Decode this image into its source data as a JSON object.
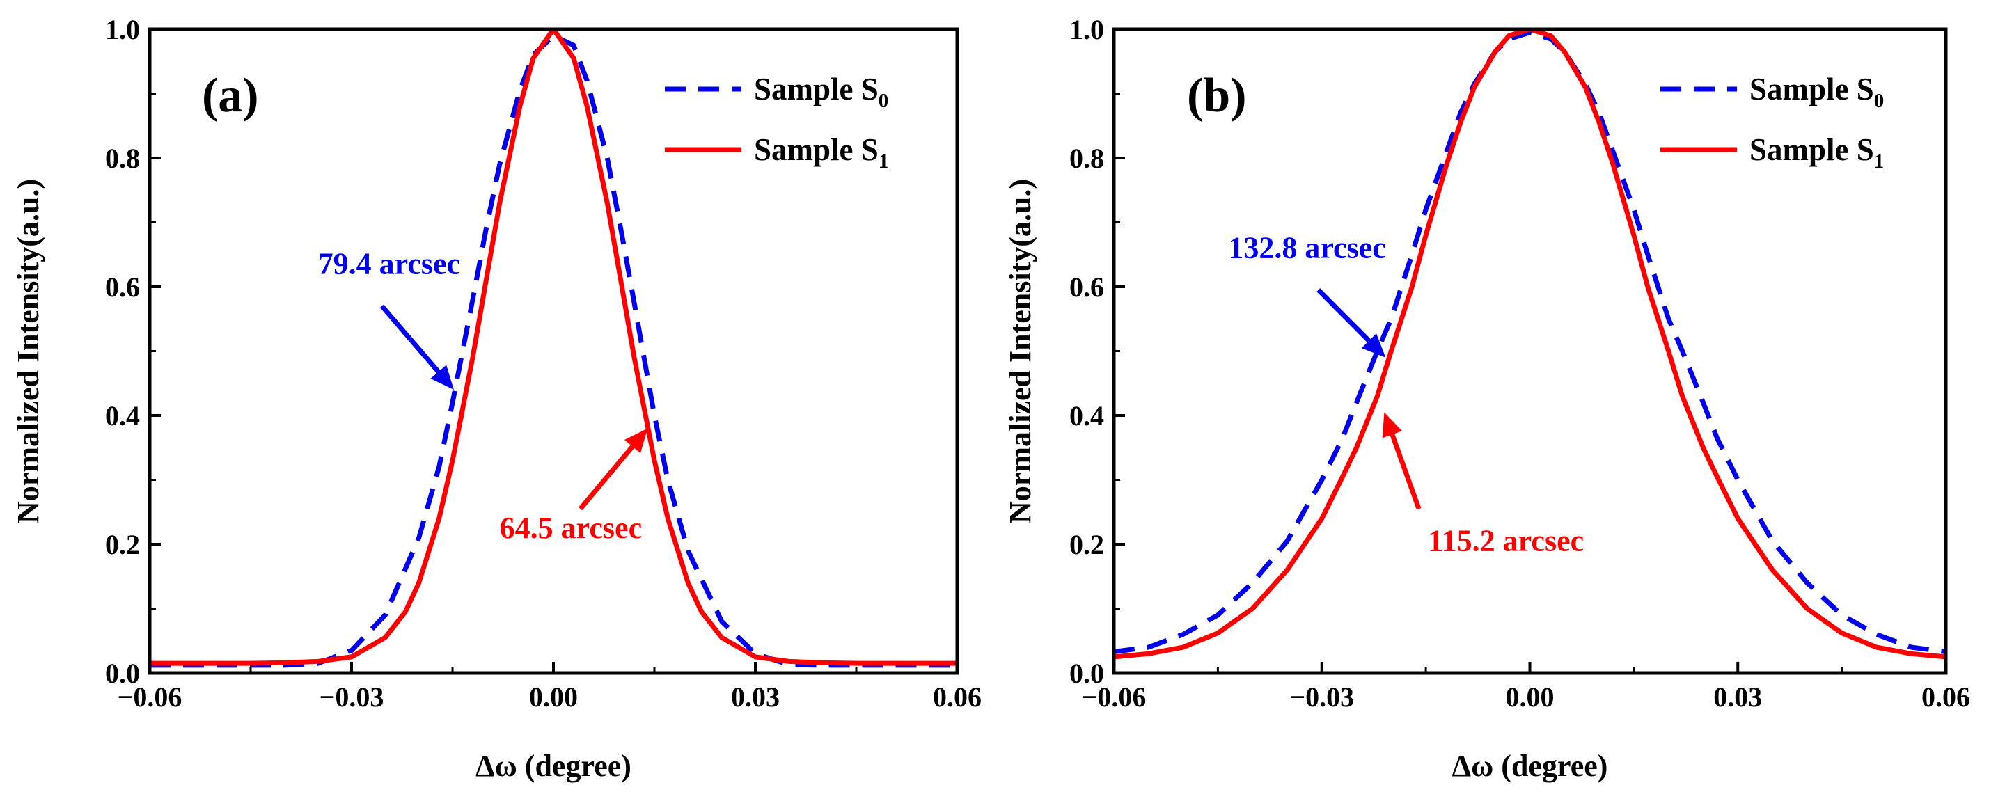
{
  "chart_data": [
    {
      "type": "line",
      "panel_label": "(a)",
      "xlabel": "Δω (degree)",
      "ylabel": "Normalized Intensity(a.u.)",
      "xlim": [
        -0.06,
        0.06
      ],
      "ylim": [
        0.0,
        1.0
      ],
      "xticks": [
        -0.06,
        -0.03,
        0.0,
        0.03,
        0.06
      ],
      "xtick_labels": [
        "−0.06",
        "−0.03",
        "0.00",
        "0.03",
        "0.06"
      ],
      "yticks": [
        0.0,
        0.2,
        0.4,
        0.6,
        0.8,
        1.0
      ],
      "ytick_labels": [
        "0.0",
        "0.2",
        "0.4",
        "0.6",
        "0.8",
        "1.0"
      ],
      "legend_position": "top-right",
      "series": [
        {
          "name_main": "Sample S",
          "name_sub": "0",
          "color": "#0000ee",
          "style": "dashed",
          "x": [
            -0.06,
            -0.045,
            -0.04,
            -0.035,
            -0.03,
            -0.025,
            -0.02,
            -0.017,
            -0.015,
            -0.012,
            -0.01,
            -0.008,
            -0.005,
            -0.003,
            0.0,
            0.003,
            0.005,
            0.008,
            0.01,
            0.012,
            0.015,
            0.017,
            0.02,
            0.025,
            0.03,
            0.035,
            0.04,
            0.045,
            0.06
          ],
          "values": [
            0.012,
            0.012,
            0.012,
            0.015,
            0.035,
            0.09,
            0.21,
            0.32,
            0.42,
            0.58,
            0.69,
            0.79,
            0.905,
            0.96,
            0.99,
            0.975,
            0.92,
            0.8,
            0.69,
            0.575,
            0.4,
            0.3,
            0.19,
            0.08,
            0.03,
            0.013,
            0.012,
            0.012,
            0.012
          ]
        },
        {
          "name_main": "Sample S",
          "name_sub": "1",
          "color": "#ff0000",
          "style": "solid",
          "x": [
            -0.06,
            -0.045,
            -0.04,
            -0.035,
            -0.03,
            -0.025,
            -0.022,
            -0.02,
            -0.017,
            -0.015,
            -0.012,
            -0.01,
            -0.008,
            -0.005,
            -0.003,
            0.0,
            0.003,
            0.005,
            0.008,
            0.01,
            0.012,
            0.015,
            0.017,
            0.02,
            0.022,
            0.025,
            0.03,
            0.035,
            0.04,
            0.045,
            0.06
          ],
          "values": [
            0.015,
            0.015,
            0.016,
            0.018,
            0.025,
            0.055,
            0.095,
            0.14,
            0.24,
            0.33,
            0.49,
            0.61,
            0.73,
            0.88,
            0.955,
            1.0,
            0.955,
            0.88,
            0.73,
            0.61,
            0.49,
            0.33,
            0.24,
            0.14,
            0.095,
            0.055,
            0.025,
            0.018,
            0.016,
            0.015,
            0.015
          ]
        }
      ],
      "annotations": [
        {
          "text": "79.4 arcsec",
          "color": "#0000ee",
          "anchor_x": -0.035,
          "anchor_y": 0.62,
          "arrow_from_x": -0.0255,
          "arrow_from_y": 0.57,
          "arrow_to_x": -0.0148,
          "arrow_to_y": 0.44
        },
        {
          "text": "64.5 arcsec",
          "color": "#ff0000",
          "anchor_x": -0.008,
          "anchor_y": 0.21,
          "arrow_from_x": 0.004,
          "arrow_from_y": 0.255,
          "arrow_to_x": 0.014,
          "arrow_to_y": 0.38
        }
      ]
    },
    {
      "type": "line",
      "panel_label": "(b)",
      "xlabel": "Δω (degree)",
      "ylabel": "Normalized Intensity(a.u.)",
      "xlim": [
        -0.06,
        0.06
      ],
      "ylim": [
        0.0,
        1.0
      ],
      "xticks": [
        -0.06,
        -0.03,
        0.0,
        0.03,
        0.06
      ],
      "xtick_labels": [
        "−0.06",
        "−0.03",
        "0.00",
        "0.03",
        "0.06"
      ],
      "yticks": [
        0.0,
        0.2,
        0.4,
        0.6,
        0.8,
        1.0
      ],
      "ytick_labels": [
        "0.0",
        "0.2",
        "0.4",
        "0.6",
        "0.8",
        "1.0"
      ],
      "legend_position": "top-right",
      "series": [
        {
          "name_main": "Sample S",
          "name_sub": "0",
          "color": "#0000ee",
          "style": "dashed",
          "x": [
            -0.06,
            -0.055,
            -0.05,
            -0.045,
            -0.04,
            -0.035,
            -0.03,
            -0.027,
            -0.025,
            -0.022,
            -0.02,
            -0.017,
            -0.015,
            -0.012,
            -0.01,
            -0.008,
            -0.005,
            -0.003,
            0.0,
            0.003,
            0.005,
            0.008,
            0.01,
            0.012,
            0.015,
            0.017,
            0.02,
            0.022,
            0.025,
            0.027,
            0.03,
            0.035,
            0.04,
            0.045,
            0.05,
            0.055,
            0.06
          ],
          "values": [
            0.033,
            0.04,
            0.06,
            0.09,
            0.14,
            0.205,
            0.3,
            0.365,
            0.42,
            0.5,
            0.55,
            0.65,
            0.72,
            0.81,
            0.87,
            0.915,
            0.965,
            0.985,
            0.995,
            0.985,
            0.965,
            0.915,
            0.87,
            0.81,
            0.72,
            0.65,
            0.55,
            0.5,
            0.42,
            0.365,
            0.3,
            0.205,
            0.14,
            0.09,
            0.06,
            0.04,
            0.033
          ]
        },
        {
          "name_main": "Sample S",
          "name_sub": "1",
          "color": "#ff0000",
          "style": "solid",
          "x": [
            -0.06,
            -0.055,
            -0.05,
            -0.045,
            -0.04,
            -0.035,
            -0.03,
            -0.027,
            -0.025,
            -0.022,
            -0.02,
            -0.017,
            -0.015,
            -0.012,
            -0.01,
            -0.008,
            -0.005,
            -0.003,
            0.0,
            0.003,
            0.005,
            0.008,
            0.01,
            0.012,
            0.015,
            0.017,
            0.02,
            0.022,
            0.025,
            0.027,
            0.03,
            0.035,
            0.04,
            0.045,
            0.05,
            0.055,
            0.06
          ],
          "values": [
            0.025,
            0.03,
            0.04,
            0.062,
            0.1,
            0.16,
            0.24,
            0.305,
            0.35,
            0.43,
            0.5,
            0.6,
            0.68,
            0.79,
            0.855,
            0.91,
            0.965,
            0.99,
            1.0,
            0.99,
            0.965,
            0.91,
            0.855,
            0.79,
            0.68,
            0.6,
            0.5,
            0.43,
            0.35,
            0.305,
            0.24,
            0.16,
            0.1,
            0.062,
            0.04,
            0.03,
            0.025
          ]
        }
      ],
      "annotations": [
        {
          "text": "132.8 arcsec",
          "color": "#0000ee",
          "anchor_x": -0.0435,
          "anchor_y": 0.645,
          "arrow_from_x": -0.0305,
          "arrow_from_y": 0.595,
          "arrow_to_x": -0.0208,
          "arrow_to_y": 0.49
        },
        {
          "text": "115.2 arcsec",
          "color": "#ff0000",
          "anchor_x": -0.0147,
          "anchor_y": 0.19,
          "arrow_from_x": -0.016,
          "arrow_from_y": 0.255,
          "arrow_to_x": -0.021,
          "arrow_to_y": 0.405
        }
      ]
    }
  ]
}
